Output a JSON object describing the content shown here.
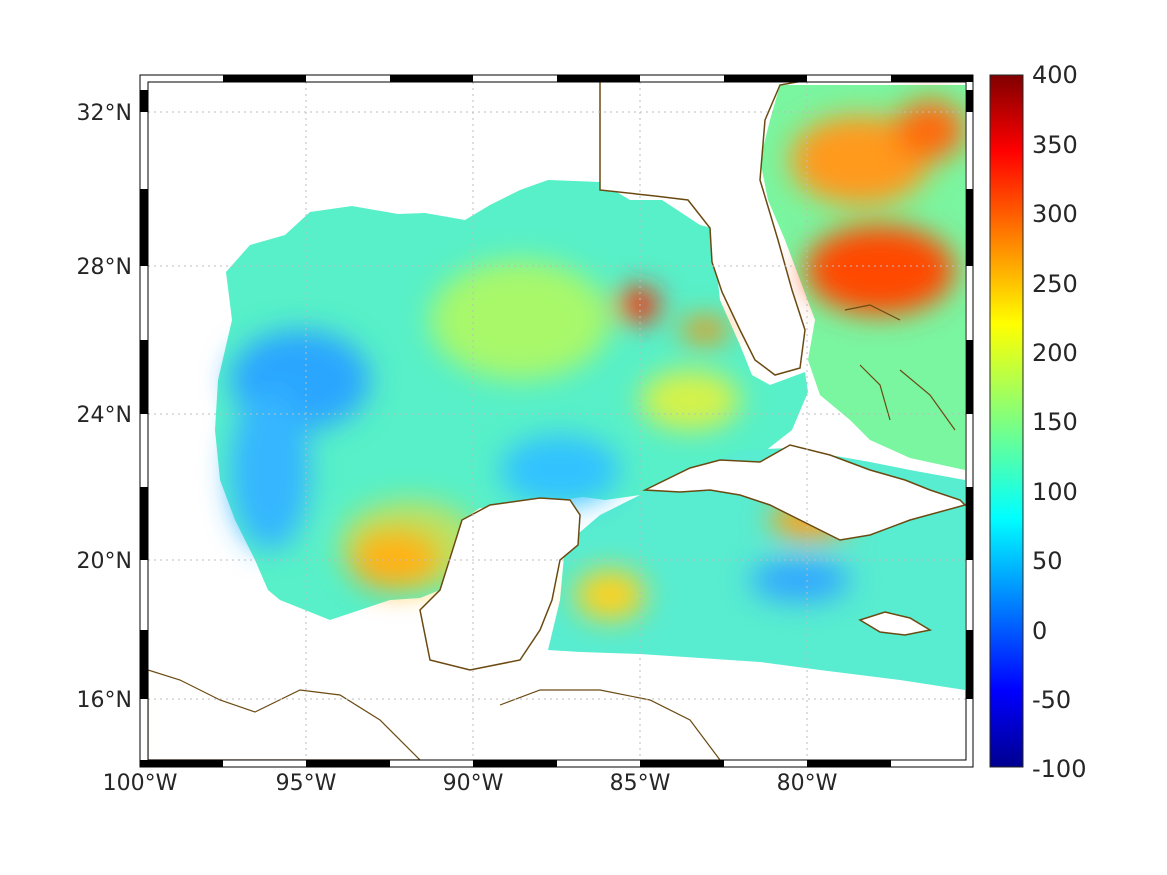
{
  "map": {
    "projection": "mercator",
    "lon_range": [
      -100,
      -75
    ],
    "lat_range": [
      14.2,
      33
    ],
    "longitude_labels": [
      {
        "lon": -100,
        "text": "100°W"
      },
      {
        "lon": -95,
        "text": "95°W"
      },
      {
        "lon": -90,
        "text": "90°W"
      },
      {
        "lon": -85,
        "text": "85°W"
      },
      {
        "lon": -80,
        "text": "80°W"
      }
    ],
    "latitude_labels": [
      {
        "lat": 32,
        "text": "32°N"
      },
      {
        "lat": 28,
        "text": "28°N"
      },
      {
        "lat": 24,
        "text": "24°N"
      },
      {
        "lat": 20,
        "text": "20°N"
      },
      {
        "lat": 16,
        "text": "16°N"
      }
    ],
    "grid": "dotted",
    "frame": "alternating black-and-white border",
    "coastline_color": "#6b4a12",
    "field_description": "gridded ocean field over Gulf of Mexico, Caribbean and western Atlantic; mostly 100-200 with maxima near 300-400 northeast of the Bahamas, off Tabasco/Campeche and near 27N 85W"
  },
  "colorbar": {
    "colormap": "jet",
    "range": [
      -100,
      400
    ],
    "ticks": [
      "400",
      "350",
      "300",
      "250",
      "200",
      "150",
      "100",
      "50",
      "0",
      "-50",
      "-100"
    ]
  },
  "colors": {
    "coast": "#6b4a12",
    "text": "#262626",
    "grid": "#bdbdbd"
  }
}
